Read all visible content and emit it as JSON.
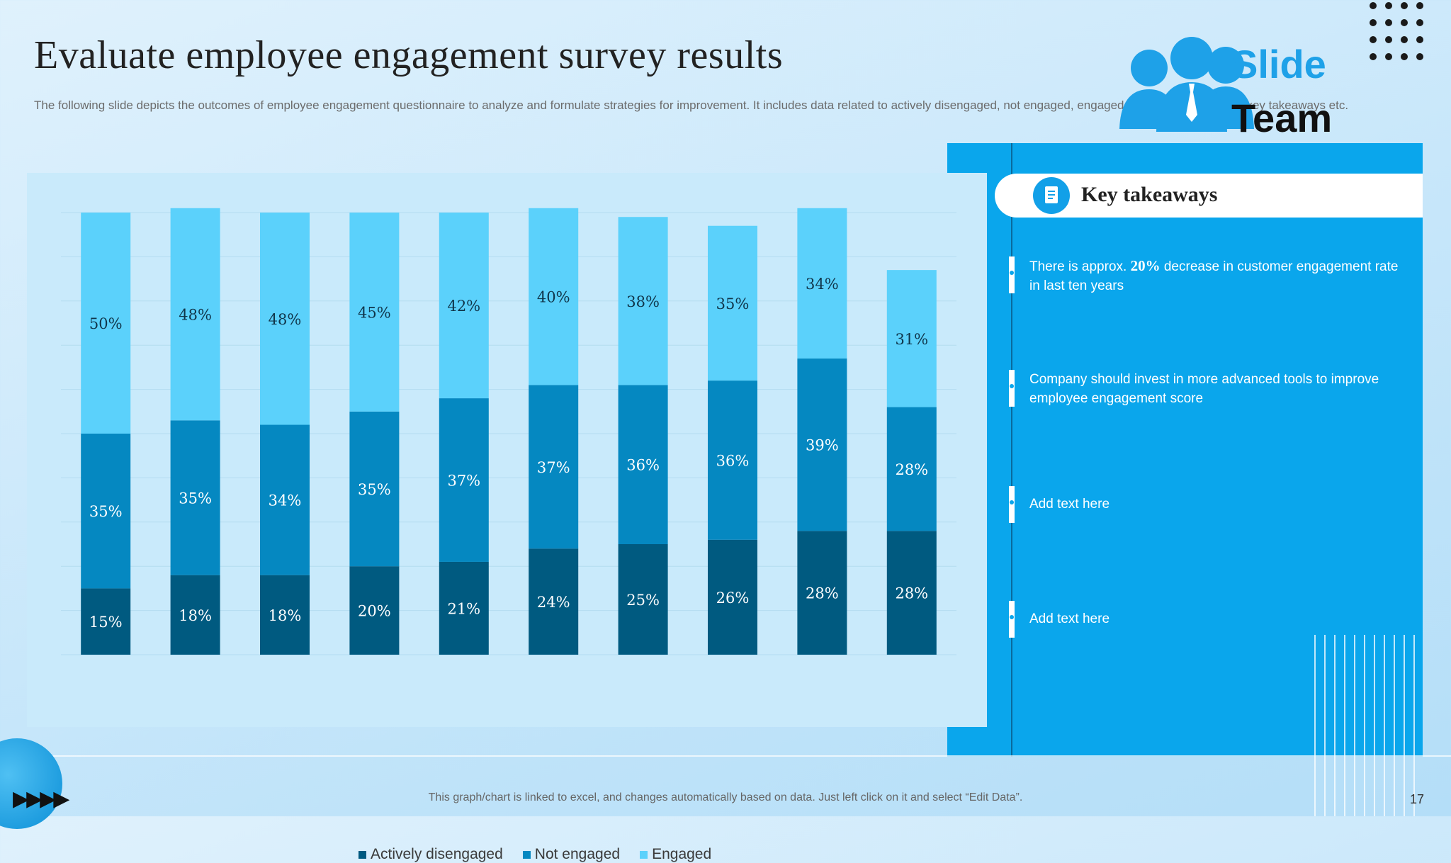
{
  "slide": {
    "title": "Evaluate employee engagement survey results",
    "subtitle": "The following slide depicts the outcomes of employee engagement questionnaire to analyze and formulate strategies for improvement. It includes data related to actively disengaged, not engaged, engaged employees along with key takeaways etc.",
    "footer": "This graph/chart is linked to excel, and changes automatically based on data. Just left click on it and select “Edit Data”.",
    "page_number": "17",
    "nav_icon": "fast-forward-arrows",
    "logo": {
      "word1": "Slide",
      "word2": "Team"
    }
  },
  "takeaways": {
    "header": "Key takeaways",
    "icon": "document-icon",
    "items": [
      {
        "pre": "There is approx. ",
        "bold": "20%",
        "post": " decrease in customer engagement rate in last ten years"
      },
      {
        "pre": "Company should invest in more advanced tools to improve employee engagement score",
        "bold": "",
        "post": ""
      },
      {
        "pre": "Add text here",
        "bold": "",
        "post": ""
      },
      {
        "pre": "Add text here",
        "bold": "",
        "post": ""
      }
    ]
  },
  "colors": {
    "actively_disengaged": "#005a80",
    "not_engaged": "#0588c1",
    "engaged": "#5bd1fb",
    "panel": "#0aa6ec"
  },
  "chart_data": {
    "type": "bar",
    "stacked": true,
    "categories": [
      "",
      "",
      "",
      "",
      "",
      "",
      "",
      "",
      "",
      ""
    ],
    "series": [
      {
        "name": "Actively disengaged",
        "values": [
          15,
          18,
          18,
          20,
          21,
          24,
          25,
          26,
          28,
          28
        ],
        "labels": [
          "15%",
          "18%",
          "18%",
          "20%",
          "21%",
          "24%",
          "25%",
          "26%",
          "28%",
          "28%"
        ]
      },
      {
        "name": "Not engaged",
        "values": [
          35,
          35,
          34,
          35,
          37,
          37,
          36,
          36,
          39,
          28
        ],
        "labels": [
          "35%",
          "35%",
          "34%",
          "35%",
          "37%",
          "37%",
          "36%",
          "36%",
          "39%",
          "28%"
        ]
      },
      {
        "name": "Engaged",
        "values": [
          50,
          48,
          48,
          45,
          42,
          40,
          38,
          35,
          34,
          31
        ],
        "labels": [
          "50%",
          "48%",
          "48%",
          "45%",
          "42%",
          "40%",
          "38%",
          "35%",
          "34%",
          "31%"
        ]
      }
    ],
    "ylim": [
      0,
      100
    ],
    "grid": true,
    "legend": "bottom"
  }
}
